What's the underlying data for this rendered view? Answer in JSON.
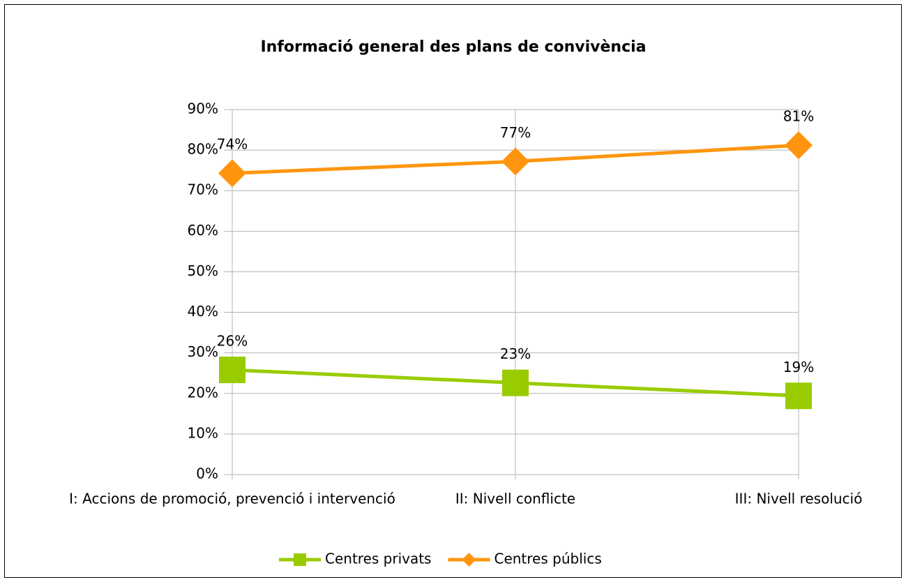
{
  "chart_data": {
    "type": "line",
    "title": "Informació general des  plans de convivència",
    "categories": [
      "I: Accions de promoció, prevenció i intervenció",
      "II: Nivell conflicte",
      "III: Nivell resolució"
    ],
    "series": [
      {
        "name": "Centres privats",
        "color": "#99cc00",
        "marker": "square",
        "values": [
          25.8,
          22.6,
          19.4
        ],
        "value_labels": [
          "26%",
          "23%",
          "19%"
        ]
      },
      {
        "name": "Centres públics",
        "color": "#ff950e",
        "marker": "diamond",
        "values": [
          74.3,
          77.2,
          81.2
        ],
        "value_labels": [
          "74%",
          "77%",
          "81%"
        ]
      }
    ],
    "ylim": [
      0,
      90
    ],
    "yticks": [
      {
        "value": 0,
        "label": "0%"
      },
      {
        "value": 10,
        "label": "10%"
      },
      {
        "value": 20,
        "label": "20%"
      },
      {
        "value": 30,
        "label": "30%"
      },
      {
        "value": 40,
        "label": "40%"
      },
      {
        "value": 50,
        "label": "50%"
      },
      {
        "value": 60,
        "label": "60%"
      },
      {
        "value": 70,
        "label": "70%"
      },
      {
        "value": 80,
        "label": "80%"
      },
      {
        "value": 90,
        "label": "90%"
      }
    ],
    "grid": true,
    "legend": "bottom"
  }
}
